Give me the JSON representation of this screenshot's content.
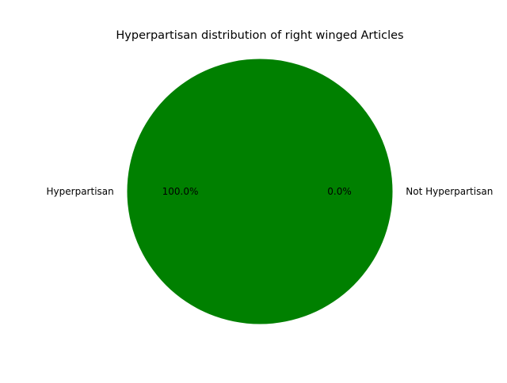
{
  "chart_data": {
    "type": "pie",
    "title": "Hyperpartisan distribution of right winged Articles",
    "slices": [
      {
        "label": "Hyperpartisan",
        "value": 100.0,
        "pct_label": "100.0%",
        "color": "#008000"
      },
      {
        "label": "Not Hyperpartisan",
        "value": 0.0,
        "pct_label": "0.0%",
        "color": "#ff0000"
      }
    ]
  }
}
